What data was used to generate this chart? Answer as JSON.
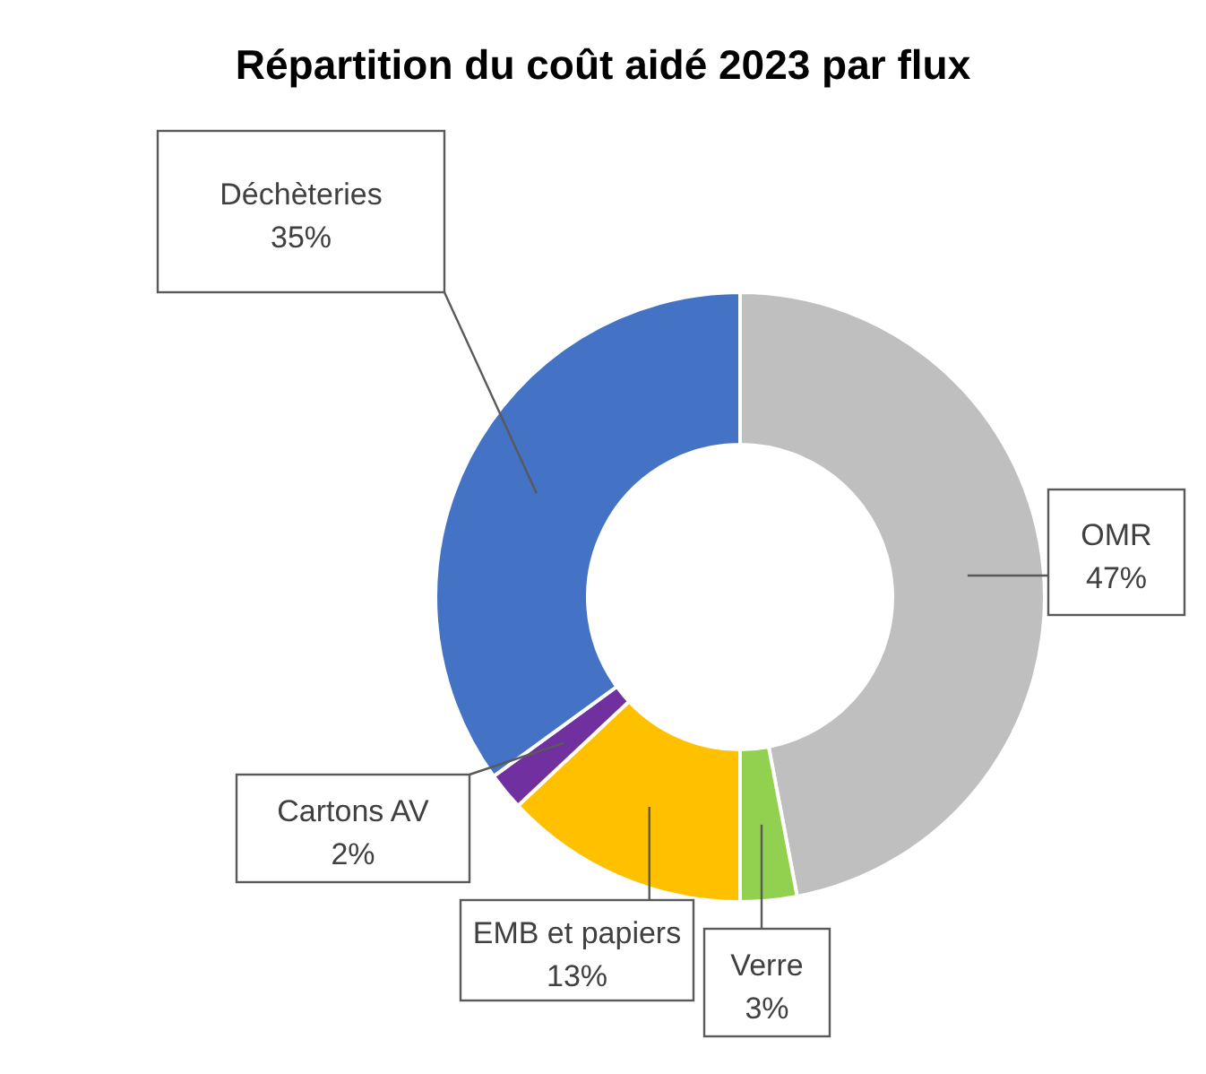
{
  "chart_data": {
    "type": "donut",
    "title": "Répartition du coût aidé 2023 par flux",
    "categories": [
      "OMR",
      "Verre",
      "EMB et papiers",
      "Cartons AV",
      "Déchèteries"
    ],
    "values": [
      47,
      3,
      13,
      2,
      35
    ],
    "value_labels": [
      "47%",
      "3%",
      "13%",
      "2%",
      "35%"
    ],
    "colors": [
      "#bfbfbf",
      "#92d050",
      "#ffc000",
      "#7030a0",
      "#4472c4"
    ],
    "legend": false
  }
}
